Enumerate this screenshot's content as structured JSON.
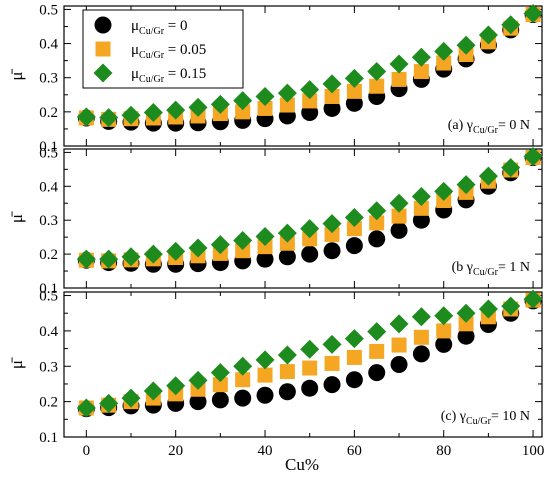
{
  "chart_data": {
    "type": "scatter",
    "x": [
      0,
      5,
      10,
      15,
      20,
      25,
      30,
      35,
      40,
      45,
      50,
      55,
      60,
      65,
      70,
      75,
      80,
      85,
      90,
      95,
      100
    ],
    "xlabel": "Cu%",
    "ylabel": "μ̄",
    "xlim": [
      -5,
      102
    ],
    "xticks": [
      "0",
      "20",
      "40",
      "60",
      "80",
      "100"
    ],
    "yticks": [
      "0.1",
      "0.2",
      "0.3",
      "0.4",
      "0.5"
    ],
    "ylim": [
      0.1,
      0.5
    ],
    "legend": {
      "placement": "top-left (panel a)",
      "entries": [
        {
          "base": "μ",
          "sub": "Cu/Gr",
          "suffix": " = 0",
          "marker": "circle",
          "color": "#000000"
        },
        {
          "base": "μ",
          "sub": "Cu/Gr",
          "suffix": " = 0.05",
          "marker": "square",
          "color": "#F5A623"
        },
        {
          "base": "μ",
          "sub": "Cu/Gr",
          "suffix": " = 0.15",
          "marker": "diamond",
          "color": "#1E8B1E"
        }
      ]
    },
    "panels": [
      {
        "label": {
          "prefix": "(a) γ",
          "sub": "Cu/Gr",
          "suffix": "= 0 N"
        },
        "series": [
          {
            "name": "μCu/Gr = 0",
            "marker": "circle",
            "color": "#000000",
            "values": [
              0.182,
              0.172,
              0.17,
              0.167,
              0.167,
              0.168,
              0.171,
              0.175,
              0.18,
              0.188,
              0.198,
              0.21,
              0.225,
              0.245,
              0.268,
              0.295,
              0.325,
              0.355,
              0.395,
              0.44,
              0.485
            ]
          },
          {
            "name": "μCu/Gr = 0.05",
            "marker": "square",
            "color": "#F5A623",
            "values": [
              0.182,
              0.178,
              0.18,
              0.182,
              0.185,
              0.188,
              0.195,
              0.2,
              0.21,
              0.22,
              0.232,
              0.245,
              0.26,
              0.275,
              0.295,
              0.318,
              0.343,
              0.368,
              0.405,
              0.445,
              0.485
            ]
          },
          {
            "name": "μCu/Gr = 0.15",
            "marker": "diamond",
            "color": "#1E8B1E",
            "values": [
              0.185,
              0.183,
              0.19,
              0.198,
              0.205,
              0.213,
              0.222,
              0.233,
              0.245,
              0.255,
              0.265,
              0.282,
              0.298,
              0.318,
              0.34,
              0.36,
              0.377,
              0.395,
              0.425,
              0.455,
              0.488
            ]
          }
        ]
      },
      {
        "label": {
          "prefix": "(b γ",
          "sub": "Cu/Gr",
          "suffix": "= 1 N"
        },
        "series": [
          {
            "name": "μCu/Gr = 0",
            "marker": "circle",
            "color": "#000000",
            "values": [
              0.182,
              0.175,
              0.173,
              0.17,
              0.17,
              0.172,
              0.175,
              0.18,
              0.185,
              0.192,
              0.2,
              0.21,
              0.225,
              0.245,
              0.27,
              0.3,
              0.33,
              0.36,
              0.4,
              0.44,
              0.485
            ]
          },
          {
            "name": "μCu/Gr = 0.05",
            "marker": "square",
            "color": "#F5A623",
            "values": [
              0.182,
              0.18,
              0.183,
              0.186,
              0.19,
              0.195,
              0.202,
              0.21,
              0.222,
              0.232,
              0.245,
              0.258,
              0.275,
              0.292,
              0.312,
              0.335,
              0.358,
              0.382,
              0.415,
              0.448,
              0.485
            ]
          },
          {
            "name": "μCu/Gr = 0.15",
            "marker": "diamond",
            "color": "#1E8B1E",
            "values": [
              0.185,
              0.185,
              0.192,
              0.2,
              0.208,
              0.218,
              0.228,
              0.24,
              0.252,
              0.262,
              0.275,
              0.29,
              0.308,
              0.328,
              0.35,
              0.37,
              0.385,
              0.405,
              0.43,
              0.455,
              0.488
            ]
          }
        ]
      },
      {
        "label": {
          "prefix": "(c) γ",
          "sub": "Cu/Gr",
          "suffix": "= 10 N"
        },
        "series": [
          {
            "name": "μCu/Gr = 0",
            "marker": "circle",
            "color": "#000000",
            "values": [
              0.18,
              0.183,
              0.188,
              0.19,
              0.195,
              0.2,
              0.205,
              0.21,
              0.218,
              0.228,
              0.238,
              0.248,
              0.262,
              0.282,
              0.305,
              0.335,
              0.362,
              0.385,
              0.418,
              0.45,
              0.485
            ]
          },
          {
            "name": "μCu/Gr = 0.05",
            "marker": "square",
            "color": "#F5A623",
            "values": [
              0.182,
              0.19,
              0.2,
              0.21,
              0.222,
              0.235,
              0.248,
              0.262,
              0.275,
              0.285,
              0.295,
              0.308,
              0.325,
              0.342,
              0.36,
              0.382,
              0.4,
              0.42,
              0.44,
              0.462,
              0.487
            ]
          },
          {
            "name": "μCu/Gr = 0.15",
            "marker": "diamond",
            "color": "#1E8B1E",
            "values": [
              0.182,
              0.195,
              0.21,
              0.23,
              0.245,
              0.26,
              0.282,
              0.3,
              0.318,
              0.332,
              0.348,
              0.362,
              0.378,
              0.398,
              0.42,
              0.44,
              0.443,
              0.45,
              0.462,
              0.47,
              0.49
            ]
          }
        ]
      }
    ]
  }
}
